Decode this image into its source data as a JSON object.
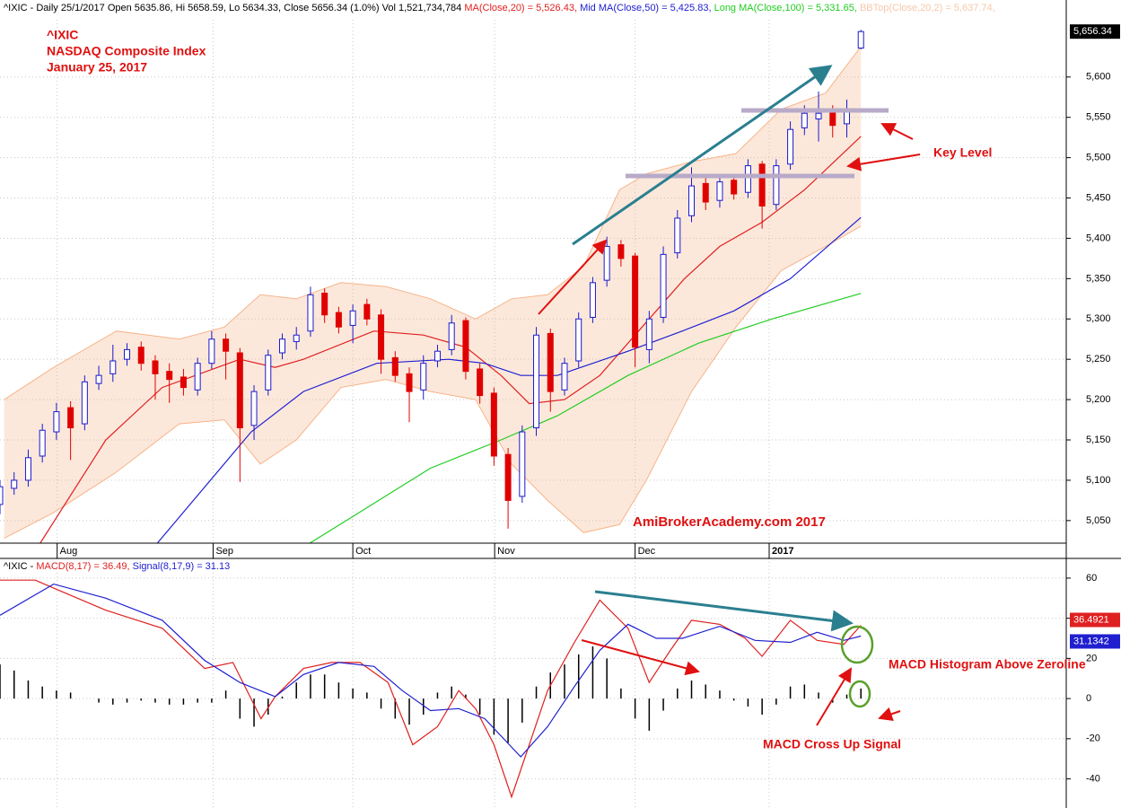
{
  "chart_data": [
    {
      "type": "candlestick",
      "header": [
        "^IXIC - Daily 25/1/2017 Open 5635.86, Hi 5658.59, Lo 5634.33, Close 5656.34 (1.0%) Vol 1,521,734,784 ",
        "MA(Close,20) = 5,526.43, ",
        "Mid MA(Close,50) = 5,425.83, ",
        "Long MA(Close,100) = 5,331.65, ",
        "BBTop(Close,20,2) = 5,637.74, "
      ],
      "annotations": [
        "^IXIC",
        "NASDAQ Composite Index",
        "January 25, 2017",
        "Key Level",
        "AmiBrokerAcademy.com  2017"
      ],
      "last_close_label": "5,656.34",
      "xlim": [
        0,
        151.1
      ],
      "xticks": [
        {
          "value": 8.1,
          "label": "Aug"
        },
        {
          "value": 30.2,
          "label": "Sep"
        },
        {
          "value": 50,
          "label": "Oct"
        },
        {
          "value": 70.1,
          "label": "Nov"
        },
        {
          "value": 90,
          "label": "Dec"
        },
        {
          "value": 109,
          "label": "2017"
        }
      ],
      "ylim": [
        5022,
        5671
      ],
      "yticks": [
        {
          "value": 5050,
          "label": "5,050"
        },
        {
          "value": 5100,
          "label": "5,100"
        },
        {
          "value": 5150,
          "label": "5,150"
        },
        {
          "value": 5200,
          "label": "5,200"
        },
        {
          "value": 5250,
          "label": "5,250"
        },
        {
          "value": 5300,
          "label": "5,300"
        },
        {
          "value": 5350,
          "label": "5,350"
        },
        {
          "value": 5400,
          "label": "5,400"
        },
        {
          "value": 5450,
          "label": "5,450"
        },
        {
          "value": 5500,
          "label": "5,500"
        },
        {
          "value": 5550,
          "label": "5,550"
        },
        {
          "value": 5600,
          "label": "5,600"
        }
      ],
      "grid": true,
      "up_color": "#1a1acc",
      "down_color": "#e00000",
      "x": [
        0,
        2,
        4,
        6,
        8,
        10,
        12,
        14,
        16,
        18,
        20,
        22,
        24,
        26,
        28,
        30,
        32,
        34,
        36,
        38,
        40,
        42,
        44,
        46,
        48,
        50,
        52,
        54,
        56,
        58,
        60,
        62,
        64,
        66,
        68,
        70,
        72,
        74,
        76,
        78,
        80,
        82,
        84,
        86,
        88,
        90,
        92,
        94,
        96,
        98,
        100,
        102,
        104,
        106,
        108,
        110,
        112,
        114,
        116,
        118,
        120,
        122
      ],
      "open": [
        5070,
        5090,
        5100,
        5130,
        5160,
        5190,
        5170,
        5220,
        5232,
        5250,
        5265,
        5248,
        5235,
        5228,
        5212,
        5245,
        5275,
        5258,
        5168,
        5212,
        5258,
        5272,
        5285,
        5332,
        5308,
        5292,
        5318,
        5305,
        5252,
        5232,
        5212,
        5248,
        5262,
        5298,
        5238,
        5208,
        5132,
        5080,
        5165,
        5282,
        5212,
        5248,
        5302,
        5348,
        5392,
        5378,
        5262,
        5302,
        5382,
        5428,
        5468,
        5447,
        5472,
        5457,
        5492,
        5442,
        5492,
        5537,
        5548,
        5558,
        5542,
        5635.86
      ],
      "high": [
        5100,
        5110,
        5138,
        5170,
        5196,
        5198,
        5230,
        5242,
        5268,
        5270,
        5272,
        5255,
        5245,
        5238,
        5252,
        5285,
        5282,
        5264,
        5218,
        5262,
        5282,
        5290,
        5340,
        5338,
        5315,
        5318,
        5325,
        5312,
        5260,
        5240,
        5255,
        5268,
        5305,
        5302,
        5245,
        5215,
        5140,
        5168,
        5290,
        5288,
        5252,
        5308,
        5352,
        5402,
        5398,
        5382,
        5310,
        5390,
        5435,
        5488,
        5475,
        5478,
        5480,
        5498,
        5496,
        5498,
        5545,
        5565,
        5582,
        5565,
        5572,
        5658.59
      ],
      "low": [
        5058,
        5082,
        5092,
        5122,
        5150,
        5125,
        5162,
        5212,
        5222,
        5242,
        5236,
        5200,
        5196,
        5205,
        5205,
        5238,
        5225,
        5098,
        5150,
        5205,
        5250,
        5262,
        5278,
        5295,
        5282,
        5270,
        5292,
        5232,
        5222,
        5172,
        5200,
        5240,
        5255,
        5225,
        5195,
        5118,
        5040,
        5072,
        5155,
        5185,
        5205,
        5240,
        5295,
        5340,
        5365,
        5240,
        5245,
        5295,
        5375,
        5420,
        5435,
        5438,
        5448,
        5450,
        5412,
        5435,
        5485,
        5528,
        5520,
        5525,
        5525,
        5634.33
      ],
      "close": [
        5092,
        5100,
        5128,
        5162,
        5185,
        5165,
        5222,
        5230,
        5248,
        5262,
        5245,
        5232,
        5225,
        5215,
        5245,
        5275,
        5260,
        5165,
        5210,
        5255,
        5275,
        5280,
        5330,
        5305,
        5290,
        5310,
        5300,
        5250,
        5230,
        5210,
        5245,
        5260,
        5295,
        5235,
        5205,
        5130,
        5075,
        5160,
        5280,
        5210,
        5245,
        5300,
        5345,
        5390,
        5375,
        5265,
        5300,
        5380,
        5425,
        5465,
        5445,
        5470,
        5455,
        5490,
        5440,
        5490,
        5535,
        5555,
        5555,
        5540,
        5560,
        5656.34
      ],
      "bands": {
        "color": "#f6b489",
        "x": [
          0.6,
          7.6,
          16.5,
          25.4,
          31.8,
          36.9,
          42,
          48.3,
          54.7,
          61,
          67.4,
          72.5,
          77.6,
          82.7,
          87.8,
          91.6,
          98,
          104.3,
          110.7,
          117,
          122
        ],
        "upper": [
          5200,
          5240,
          5285,
          5275,
          5290,
          5330,
          5325,
          5345,
          5340,
          5325,
          5300,
          5325,
          5330,
          5365,
          5460,
          5480,
          5495,
          5505,
          5560,
          5580,
          5637.74
        ],
        "lower": [
          5028,
          5060,
          5110,
          5170,
          5175,
          5120,
          5150,
          5215,
          5225,
          5210,
          5200,
          5120,
          5075,
          5035,
          5045,
          5100,
          5210,
          5290,
          5360,
          5390,
          5415
        ]
      },
      "lines": [
        {
          "color": "#e02020",
          "x": [
            5.7,
            15,
            23,
            34,
            39,
            43,
            53,
            60,
            66,
            71,
            75,
            80,
            85,
            90,
            97,
            102,
            108,
            114,
            122
          ],
          "values": [
            5022,
            5150,
            5215,
            5250,
            5240,
            5250,
            5285,
            5280,
            5265,
            5230,
            5195,
            5200,
            5230,
            5280,
            5350,
            5390,
            5420,
            5460,
            5526.43
          ]
        },
        {
          "color": "#2020d0",
          "x": [
            22.3,
            35.6,
            43,
            53.4,
            63.6,
            68.7,
            73.8,
            79,
            84,
            89,
            96.7,
            104,
            112,
            122
          ],
          "values": [
            5022,
            5160,
            5210,
            5245,
            5250,
            5245,
            5230,
            5230,
            5245,
            5260,
            5285,
            5310,
            5350,
            5425.83
          ]
        },
        {
          "color": "#22cc22",
          "x": [
            43.9,
            50.9,
            61,
            71,
            79,
            89,
            99,
            109.4,
            122
          ],
          "values": [
            5022,
            5060,
            5115,
            5150,
            5180,
            5230,
            5270,
            5300,
            5331.65
          ]
        }
      ]
    },
    {
      "type": "macd",
      "header": [
        "^IXIC - ",
        "MACD(8,17) = 36.49, ",
        "Signal(8,17,9) = 31.13"
      ],
      "annotations": [
        "MACD Histogram Above Zeroline",
        "MACD Cross Up Signal"
      ],
      "ylim": [
        -54.5,
        69.8
      ],
      "yticks": [
        -40,
        -20,
        0,
        20,
        40,
        60
      ],
      "grid": true,
      "lines": [
        {
          "color": "#e02020",
          "x": [
            0,
            5,
            7.6,
            15,
            23,
            29,
            33,
            37,
            39,
            43,
            47,
            51,
            55,
            58.5,
            62,
            65,
            67.4,
            70,
            72.5,
            75,
            77.6,
            81.4,
            85,
            89,
            92,
            95,
            98,
            102,
            105.6,
            108,
            112,
            115.8,
            119.6,
            122
          ],
          "values": [
            59,
            59,
            55,
            44,
            35,
            15,
            18,
            -10,
            1,
            15,
            18,
            18,
            8,
            -23,
            -14,
            4,
            -5,
            -23,
            -49,
            -23,
            4,
            28,
            49,
            35,
            8,
            24,
            39,
            37,
            30,
            21,
            39,
            29,
            27,
            36.4921
          ]
        },
        {
          "color": "#2020d0",
          "x": [
            0,
            7.6,
            15,
            23,
            29,
            34,
            39,
            43,
            48,
            53,
            57,
            61,
            65,
            68.7,
            73.8,
            77.6,
            81.4,
            85,
            89,
            93,
            96.7,
            102,
            107,
            112,
            115.8,
            119.6,
            122
          ],
          "values": [
            41.5,
            57,
            50,
            39,
            19,
            8,
            1,
            12,
            18,
            16,
            4,
            -6,
            -5,
            -10,
            -29,
            -14,
            6,
            24,
            37,
            30,
            30,
            36,
            29,
            28,
            33,
            29,
            31.1342
          ]
        }
      ],
      "histogram": {
        "color": "#000000",
        "x": [
          0,
          2,
          4,
          6,
          8,
          10,
          12,
          14,
          16,
          18,
          20,
          22,
          24,
          26,
          28,
          30,
          32,
          34,
          36,
          38,
          40,
          42,
          44,
          46,
          48,
          50,
          52,
          54,
          56,
          58,
          60,
          62,
          64,
          66,
          68,
          70,
          72,
          74,
          76,
          78,
          80,
          82,
          84,
          86,
          88,
          90,
          92,
          94,
          96,
          98,
          100,
          102,
          104,
          106,
          108,
          110,
          112,
          114,
          116,
          118,
          120,
          122
        ],
        "values": [
          17,
          14,
          9,
          6,
          4,
          3,
          0,
          -2,
          -3,
          -2,
          -1,
          -2,
          -3,
          -3,
          -2,
          -2,
          4,
          -10,
          -14,
          -8,
          1,
          8,
          12,
          12,
          8,
          5,
          3,
          -5,
          -10,
          -13,
          -8,
          3,
          6,
          2,
          -8,
          -18,
          -22,
          -12,
          6,
          13,
          17,
          22,
          26,
          20,
          5,
          -10,
          -16,
          -6,
          5,
          9,
          7,
          4,
          -1,
          -4,
          -8,
          -3,
          6,
          7,
          3,
          -2,
          2,
          5
        ]
      }
    }
  ]
}
